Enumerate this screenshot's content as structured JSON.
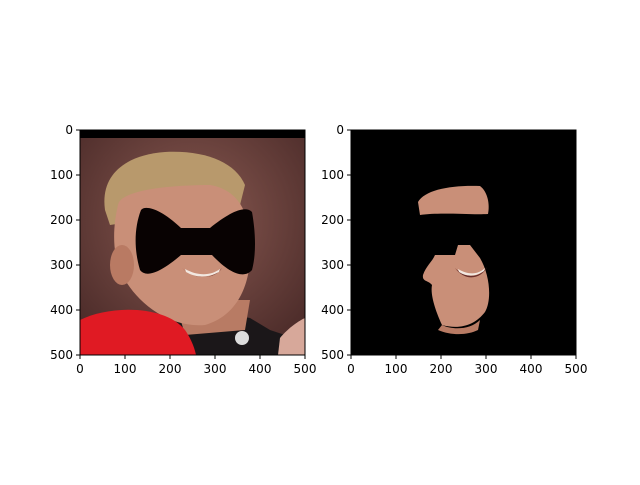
{
  "chart_data": [
    {
      "type": "image",
      "panel": "left",
      "description": "Photo of a young man with short blond hair, smiling; eyes region covered by a black bow-tie shaped mask; red paddle bottom-left",
      "xlim": [
        0,
        500
      ],
      "ylim": [
        500,
        0
      ],
      "xticks": [
        0,
        100,
        200,
        300,
        400,
        500
      ],
      "yticks": [
        0,
        100,
        200,
        300,
        400,
        500
      ],
      "colors": {
        "mask": "#080202",
        "skin": "#c98f78",
        "hair": "#b89a6c",
        "background": "#7a4a44",
        "paddle": "#e01a23",
        "shirt": "#1a1518"
      }
    },
    {
      "type": "image",
      "panel": "right",
      "description": "Segmented face region only (forehead, nose, mouth, chin) on black background, with bow-tie mask removed",
      "xlim": [
        0,
        500
      ],
      "ylim": [
        500,
        0
      ],
      "xticks": [
        0,
        100,
        200,
        300,
        400,
        500
      ],
      "yticks": [
        0,
        100,
        200,
        300,
        400,
        500
      ],
      "colors": {
        "background": "#000000",
        "skin": "#c98f78"
      }
    }
  ]
}
